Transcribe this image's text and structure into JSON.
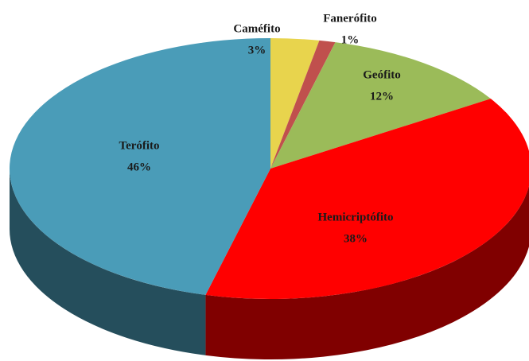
{
  "chart_data": {
    "type": "pie",
    "categories": [
      "Caméfito",
      "Fanerófito",
      "Geófito",
      "Hemicriptófito",
      "Terófito"
    ],
    "values": [
      3,
      1,
      12,
      38,
      46
    ],
    "value_labels": [
      "3%",
      "1%",
      "12%",
      "38%",
      "46%"
    ],
    "colors": [
      "#e8d44d",
      "#c0504d",
      "#9bbb59",
      "#ff0000",
      "#4a9cb8"
    ]
  }
}
